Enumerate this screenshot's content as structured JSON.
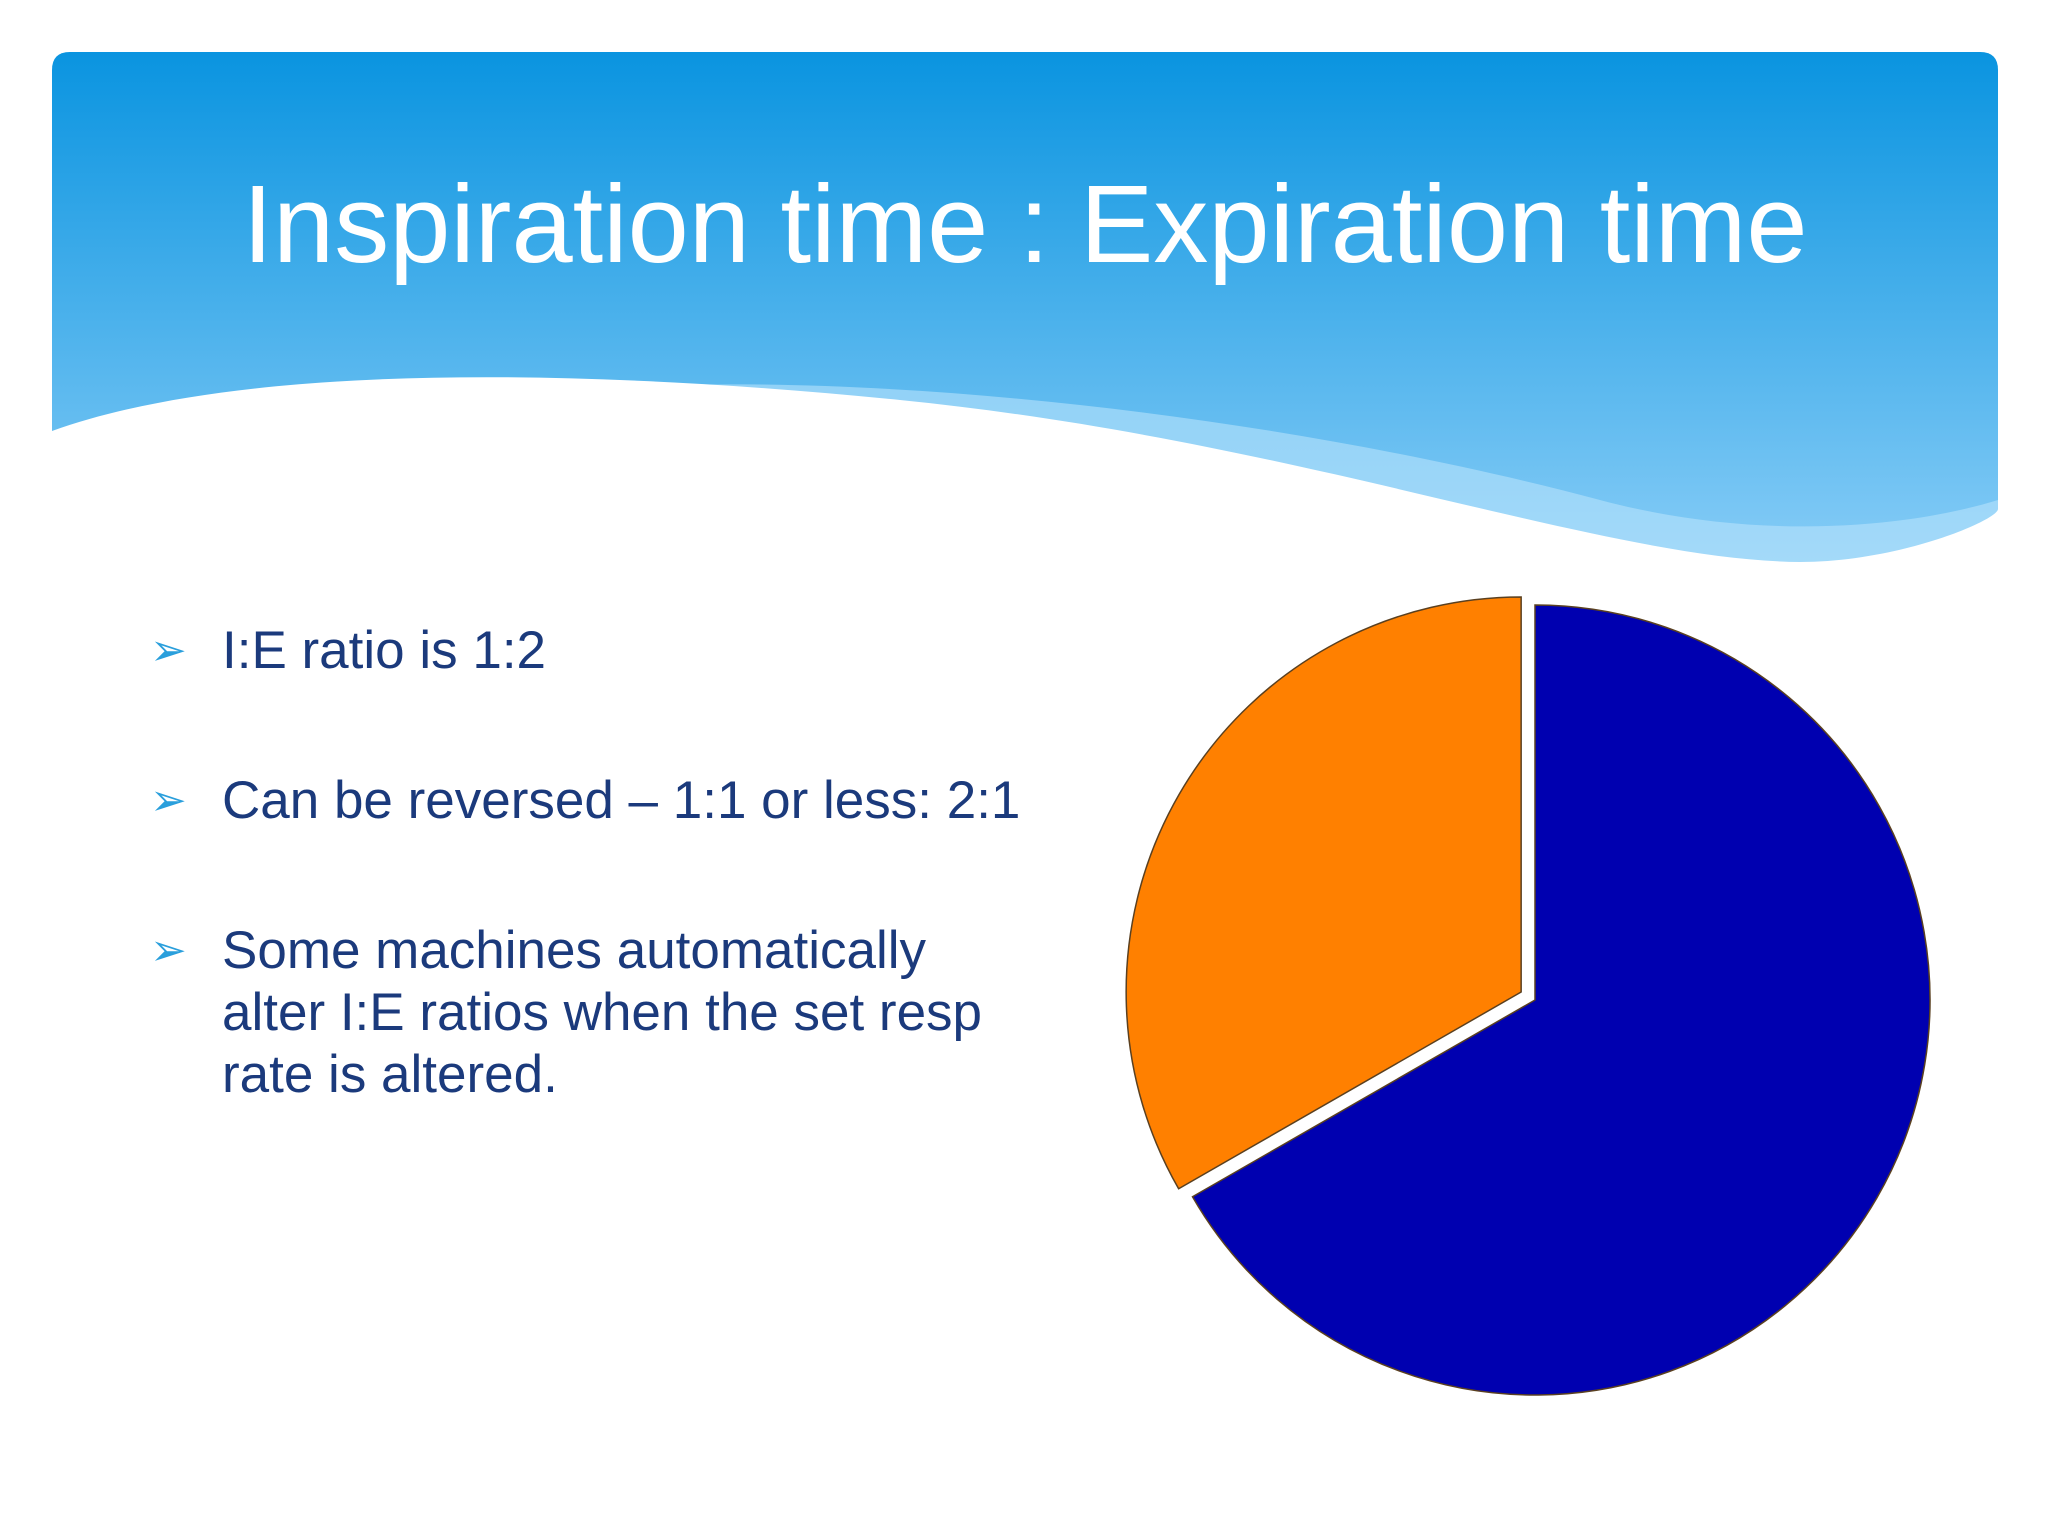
{
  "header": {
    "title": "Inspiration time : Expiration time"
  },
  "bullets": [
    "I:E ratio is 1:2",
    "Can be reversed – 1:1 or less: 2:1",
    "Some machines automatically alter I:E ratios when the set resp rate is altered."
  ],
  "chart_data": {
    "type": "pie",
    "values": [
      66.7,
      33.3
    ],
    "colors": [
      "#0000b0",
      "#ff8000"
    ]
  }
}
